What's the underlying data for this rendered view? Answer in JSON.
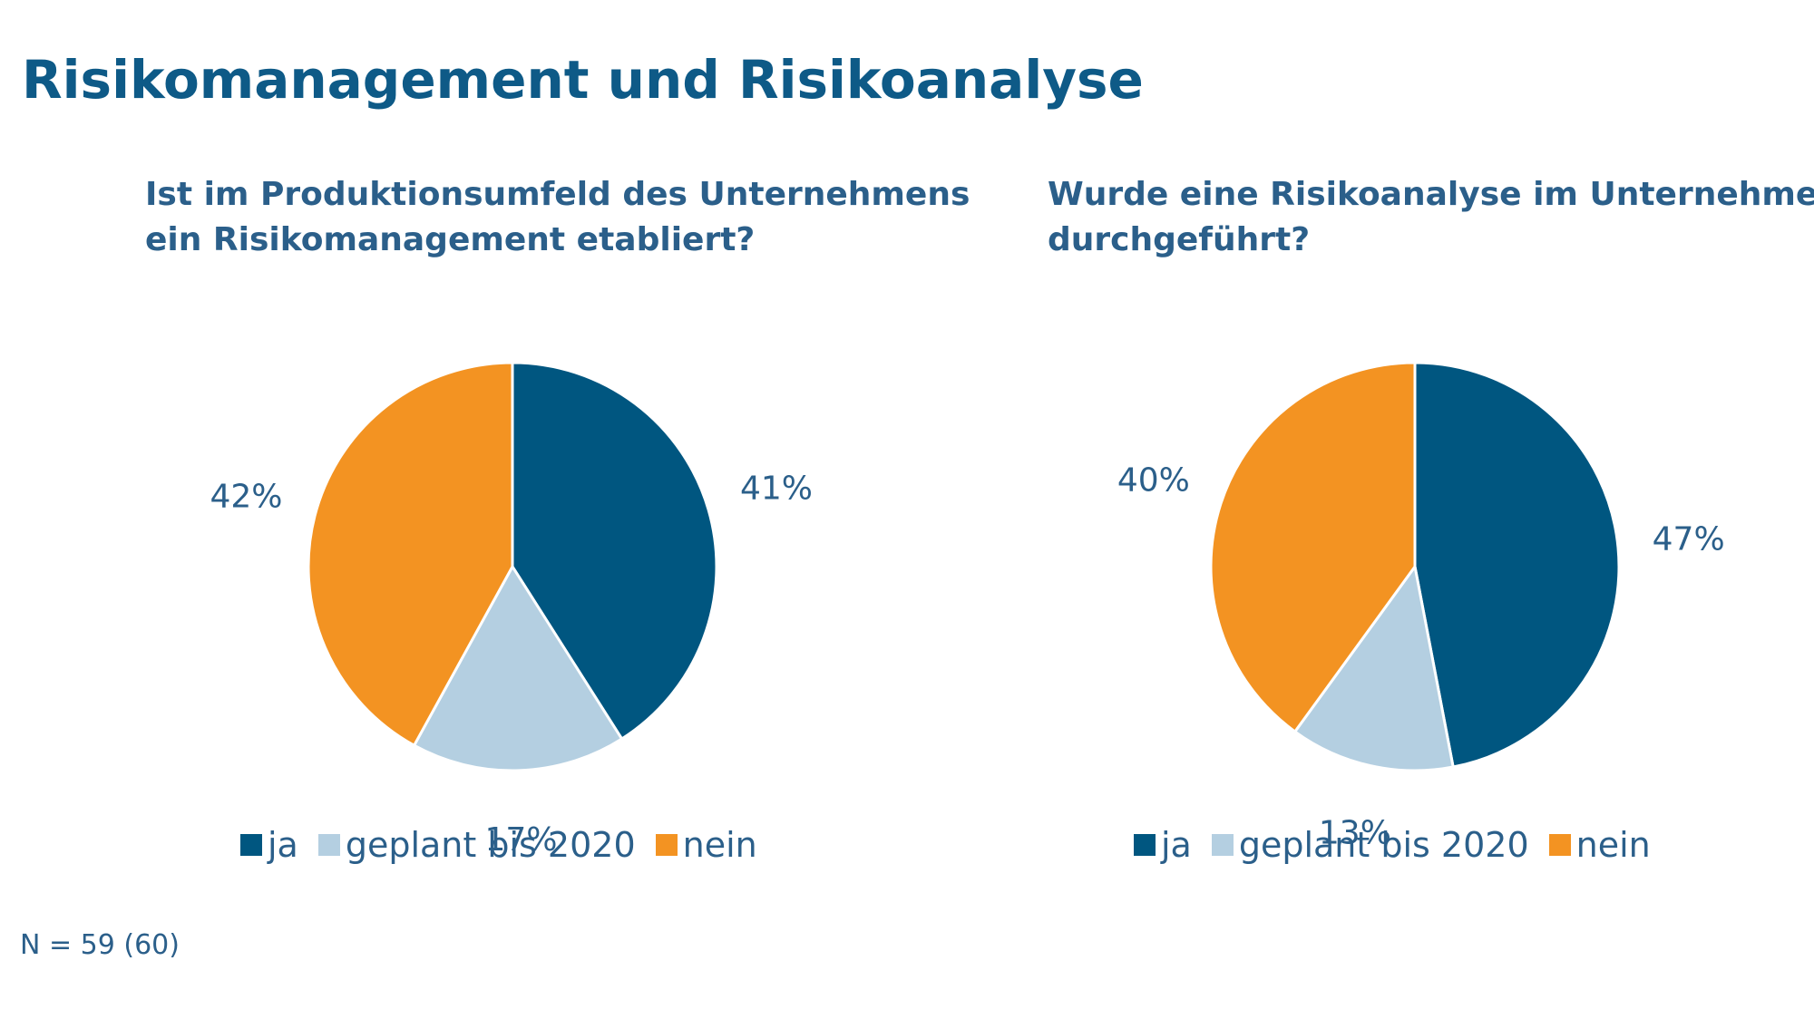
{
  "title": "Risikomanagement und Risikoanalyse",
  "footnote": "N = 59 (60)",
  "colors": {
    "ja": "#005680",
    "geplant bis 2020": "#b4cfe1",
    "nein": "#f39322",
    "text": "#2b5f8a",
    "title": "#0e5a87"
  },
  "chart_data": [
    {
      "type": "pie",
      "title_lines": [
        "Ist im Produktionsumfeld des Unternehmens",
        "ein Risikomanagement etabliert?"
      ],
      "categories": [
        "ja",
        "geplant bis 2020",
        "nein"
      ],
      "values": [
        41,
        17,
        42
      ],
      "labels": [
        "41%",
        "17%",
        "42%"
      ],
      "legend": [
        "ja",
        "geplant bis 2020",
        "nein"
      ],
      "legend_placement": "bottom"
    },
    {
      "type": "pie",
      "title_lines": [
        "Wurde eine Risikoanalyse im Unternehmen",
        "durchgeführt?"
      ],
      "categories": [
        "ja",
        "geplant bis 2020",
        "nein"
      ],
      "values": [
        47,
        13,
        40
      ],
      "labels": [
        "47%",
        "13%",
        "40%"
      ],
      "legend": [
        "ja",
        "geplant bis 2020",
        "nein"
      ],
      "legend_placement": "bottom"
    }
  ]
}
